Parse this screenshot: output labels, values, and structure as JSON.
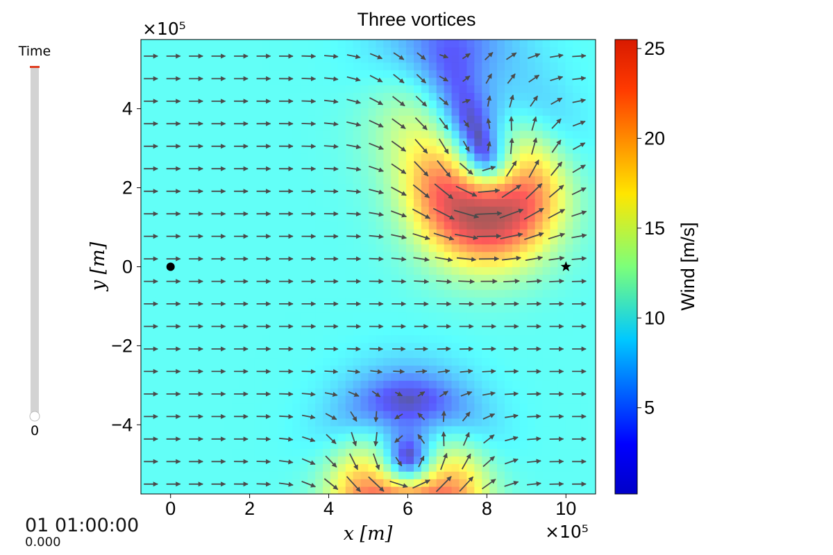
{
  "slider": {
    "label": "Time",
    "value_text": "0",
    "value": 0,
    "track_color": "#d3d3d3",
    "fill_color": "#e03c1f"
  },
  "time_display": {
    "main": "01 01:00:00",
    "sub": "0.000"
  },
  "chart_data": {
    "type": "heatmap",
    "title": "Three vortices",
    "xlabel": "x [m]",
    "ylabel": "y [m]",
    "x_offset_text": "×10⁵",
    "y_offset_text": "×10⁵",
    "xlim": [
      -75000,
      1075000
    ],
    "ylim": [
      -575000,
      575000
    ],
    "xticks": [
      0,
      200000,
      400000,
      600000,
      800000,
      1000000
    ],
    "xtick_labels": [
      "0",
      "2",
      "4",
      "6",
      "8",
      "10"
    ],
    "yticks": [
      -400000,
      -200000,
      0,
      200000,
      400000
    ],
    "ytick_labels": [
      "−4",
      "−2",
      "0",
      "2",
      "4"
    ],
    "colorbar": {
      "label": "Wind [m/s]",
      "range": [
        0.2,
        25.5
      ],
      "ticks": [
        5,
        10,
        15,
        20,
        25
      ],
      "tick_labels": [
        "5",
        "10",
        "15",
        "20",
        "25"
      ],
      "colormap": "jet"
    },
    "field": "wind speed with quiver arrows, background 10 m/s westerly flow",
    "vortices": [
      {
        "x": 800000,
        "y": 230000,
        "core_speed": 3,
        "max_speed": 25
      },
      {
        "x": 600000,
        "y": -525000,
        "core_speed": 3,
        "max_speed": 25
      },
      {
        "x": 705000,
        "y": 435000,
        "core_speed": 2,
        "max_speed": 6
      }
    ],
    "markers": [
      {
        "shape": "circle",
        "x": 0,
        "y": 0,
        "color": "#000000"
      },
      {
        "shape": "star",
        "x": 1000000,
        "y": 0,
        "color": "#000000"
      }
    ],
    "grid": false
  }
}
